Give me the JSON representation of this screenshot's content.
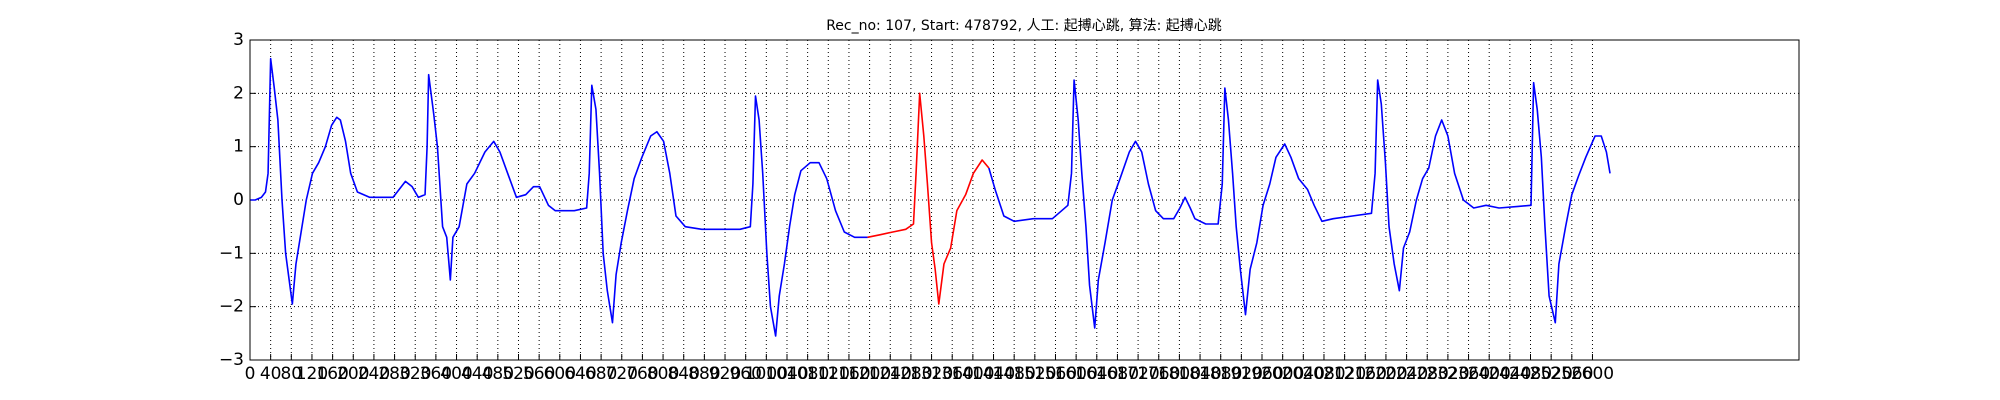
{
  "chart_data": {
    "type": "line",
    "title": "Rec_no: 107, Start: 478792, 人工: 起搏心跳, 算法: 起搏心跳",
    "xlim": [
      0,
      3000
    ],
    "ylim": [
      -3,
      3
    ],
    "xticks": [
      0,
      40,
      80,
      120,
      160,
      200,
      240,
      280,
      320,
      360,
      400,
      440,
      480,
      520,
      560,
      600,
      640,
      680,
      720,
      760,
      800,
      840,
      880,
      920,
      960,
      1000,
      1040,
      1080,
      1120,
      1160,
      1200,
      1240,
      1280,
      1320,
      1360,
      1400,
      1440,
      1480,
      1520,
      1560,
      1600,
      1640,
      1680,
      1720,
      1760,
      1800,
      1840,
      1880,
      1920,
      1960,
      2000,
      2040,
      2080,
      2120,
      2160,
      2200,
      2240,
      2280,
      2320,
      2360,
      2400,
      2440,
      2480,
      2520,
      2560,
      2600
    ],
    "yticks": [
      {
        "value": -3,
        "label": "−3"
      },
      {
        "value": -2,
        "label": "−2"
      },
      {
        "value": -1,
        "label": "−1"
      },
      0,
      1,
      2,
      3
    ],
    "grid": true,
    "series": [
      {
        "color": "#0000ff",
        "x": [
          0,
          10,
          22,
          30,
          35,
          40,
          47,
          54,
          62,
          69,
          82,
          89,
          99,
          109,
          121,
          133,
          146,
          158,
          168,
          175,
          185,
          195,
          208,
          232,
          257,
          277,
          289,
          301,
          314,
          326,
          339,
          343,
          346,
          356,
          363,
          373,
          381,
          388,
          393,
          405,
          420,
          435,
          455,
          472,
          484,
          499,
          516,
          534,
          549,
          561,
          578,
          591,
          603,
          628,
          652,
          657,
          662,
          670,
          677,
          684,
          692,
          702,
          709,
          719,
          731,
          744,
          759,
          776,
          788,
          801,
          813,
          825,
          843,
          875,
          912,
          949,
          969,
          974,
          979,
          986,
          993,
          1001,
          1008,
          1018,
          1025,
          1035,
          1045,
          1055,
          1067,
          1085,
          1102,
          1117,
          1134,
          1151,
          1171,
          1196
        ],
        "values": [
          0,
          0,
          0.05,
          0.15,
          0.5,
          2.65,
          2.1,
          1.5,
          0,
          -1.0,
          -1.95,
          -1.2,
          -0.6,
          0,
          0.5,
          0.7,
          1.0,
          1.4,
          1.55,
          1.5,
          1.1,
          0.5,
          0.15,
          0.05,
          0.05,
          0.05,
          0.2,
          0.35,
          0.25,
          0.05,
          0.1,
          1.0,
          2.35,
          1.6,
          1.0,
          -0.5,
          -0.7,
          -1.5,
          -0.7,
          -0.5,
          0.3,
          0.5,
          0.9,
          1.1,
          0.9,
          0.5,
          0.05,
          0.1,
          0.25,
          0.25,
          -0.1,
          -0.2,
          -0.2,
          -0.2,
          -0.15,
          0.5,
          2.15,
          1.7,
          0.5,
          -1.0,
          -1.7,
          -2.3,
          -1.4,
          -0.8,
          -0.2,
          0.4,
          0.8,
          1.2,
          1.28,
          1.1,
          0.5,
          -0.3,
          -0.5,
          -0.55,
          -0.55,
          -0.55,
          -0.5,
          0.3,
          1.95,
          1.5,
          0.5,
          -1.0,
          -2.0,
          -2.55,
          -1.8,
          -1.2,
          -0.5,
          0.1,
          0.55,
          0.7,
          0.7,
          0.4,
          -0.2,
          -0.6,
          -0.7,
          -0.7
        ]
      },
      {
        "color": "#ff0000",
        "x": [
          1196,
          1221,
          1245,
          1270,
          1285,
          1290,
          1297,
          1305,
          1312,
          1320,
          1327,
          1334,
          1344,
          1357,
          1369,
          1386,
          1401,
          1418,
          1431
        ],
        "values": [
          -0.7,
          -0.65,
          -0.6,
          -0.55,
          -0.45,
          0.5,
          2.0,
          1.2,
          0.3,
          -0.8,
          -1.3,
          -1.95,
          -1.2,
          -0.9,
          -0.2,
          0.1,
          0.5,
          0.75,
          0.6
        ]
      },
      {
        "color": "#0000ff",
        "x": [
          1431,
          1443,
          1460,
          1480,
          1517,
          1554,
          1572,
          1584,
          1591,
          1596,
          1604,
          1611,
          1619,
          1626,
          1636,
          1643,
          1656,
          1670,
          1685,
          1703,
          1715,
          1727,
          1740,
          1754,
          1769,
          1789,
          1801,
          1811,
          1821,
          1830,
          1851,
          1875,
          1883,
          1888,
          1895,
          1903,
          1910,
          1918,
          1928,
          1937,
          1950,
          1962,
          1975,
          1987,
          2004,
          2016,
          2031,
          2048,
          2061,
          2076,
          2098,
          2135,
          2172,
          2179,
          2184,
          2191,
          2199,
          2206,
          2216,
          2226,
          2234,
          2246,
          2259,
          2271,
          2283,
          2296,
          2308,
          2320,
          2333,
          2350,
          2370,
          2394,
          2419,
          2456,
          2481,
          2486,
          2493,
          2501,
          2508,
          2516,
          2528,
          2535,
          2548,
          2560,
          2573,
          2587,
          2605,
          2617,
          2627,
          2634
        ],
        "values": [
          0.6,
          0.2,
          -0.3,
          -0.4,
          -0.35,
          -0.35,
          -0.2,
          -0.1,
          0.5,
          2.25,
          1.5,
          0.5,
          -0.5,
          -1.6,
          -2.4,
          -1.5,
          -0.8,
          0,
          0.4,
          0.9,
          1.1,
          0.9,
          0.3,
          -0.2,
          -0.35,
          -0.35,
          -0.15,
          0.05,
          -0.15,
          -0.35,
          -0.45,
          -0.45,
          0.3,
          2.1,
          1.5,
          0.5,
          -0.5,
          -1.3,
          -2.15,
          -1.3,
          -0.8,
          -0.1,
          0.3,
          0.8,
          1.05,
          0.8,
          0.4,
          0.2,
          -0.1,
          -0.4,
          -0.35,
          -0.3,
          -0.25,
          0.5,
          2.25,
          1.8,
          0.7,
          -0.5,
          -1.2,
          -1.7,
          -0.9,
          -0.6,
          0.0,
          0.4,
          0.6,
          1.2,
          1.5,
          1.2,
          0.5,
          0.0,
          -0.15,
          -0.1,
          -0.15,
          -0.12,
          -0.1,
          2.2,
          1.7,
          0.8,
          -0.5,
          -1.8,
          -2.3,
          -1.2,
          -0.5,
          0.1,
          0.45,
          0.8,
          1.2,
          1.2,
          0.9,
          0.5
        ]
      }
    ]
  }
}
